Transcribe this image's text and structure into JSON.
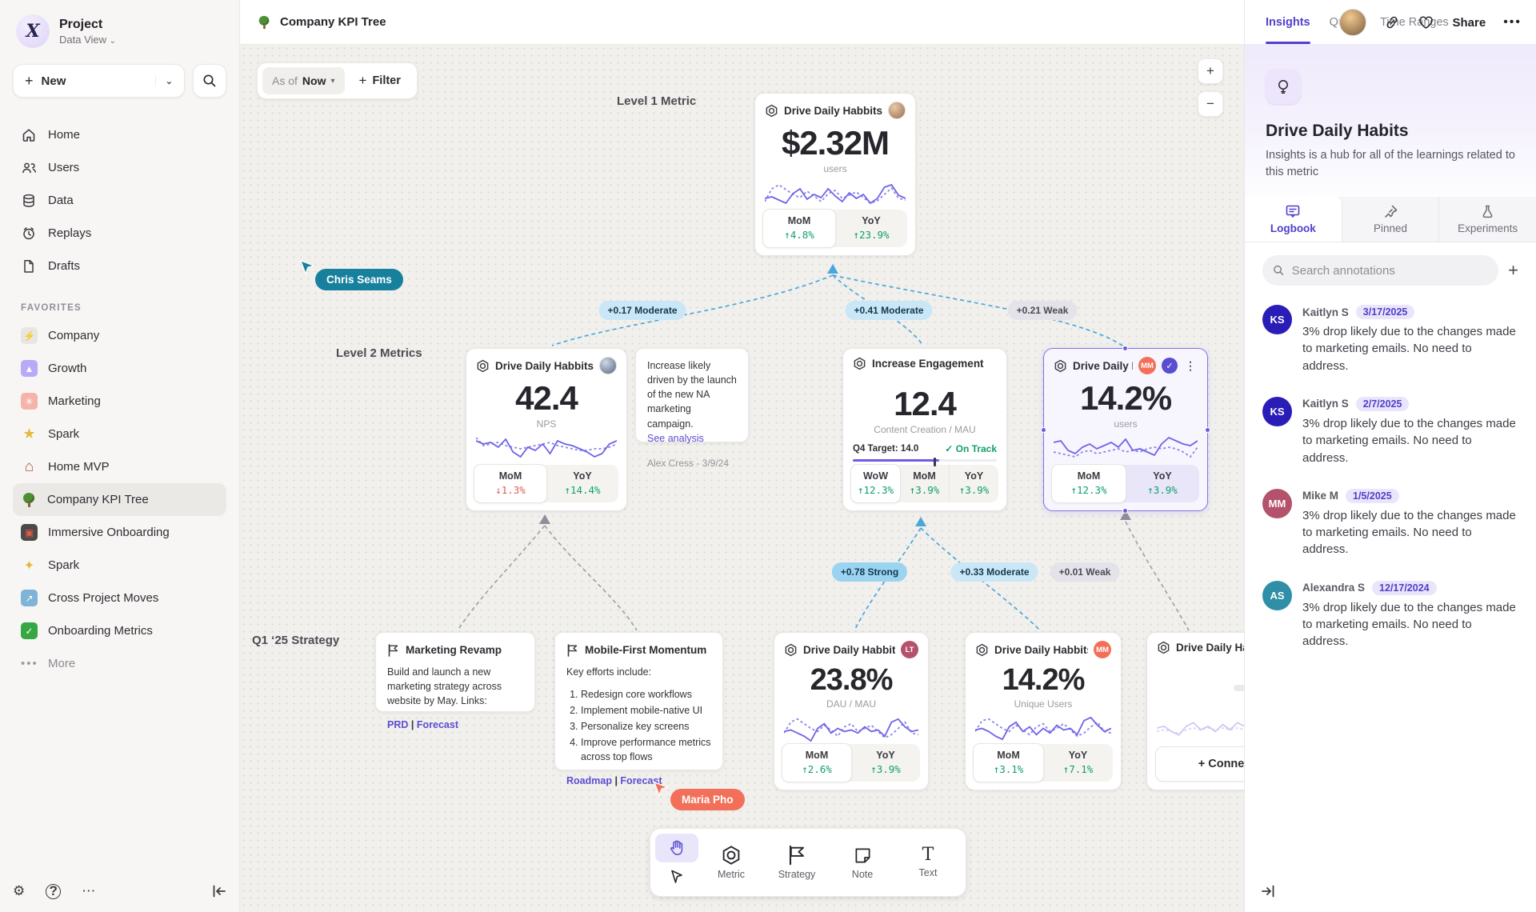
{
  "sidebar": {
    "project_name": "Project",
    "project_view": "Data View",
    "new_label": "New",
    "nav": [
      {
        "label": "Home"
      },
      {
        "label": "Users"
      },
      {
        "label": "Data"
      },
      {
        "label": "Replays"
      },
      {
        "label": "Drafts"
      }
    ],
    "favorites_label": "FAVORITES",
    "favorites": [
      {
        "label": "Company"
      },
      {
        "label": "Growth"
      },
      {
        "label": "Marketing"
      },
      {
        "label": "Spark"
      },
      {
        "label": "Home MVP"
      },
      {
        "label": "Company KPI Tree"
      },
      {
        "label": "Immersive Onboarding"
      },
      {
        "label": "Spark"
      },
      {
        "label": "Cross Project Moves"
      },
      {
        "label": "Onboarding Metrics"
      }
    ],
    "more_label": "More"
  },
  "header": {
    "title": "Company KPI Tree",
    "share_label": "Share"
  },
  "canvas": {
    "asof_prefix": "As of",
    "asof_value": "Now",
    "filter_label": "Filter",
    "zoom_in": "+",
    "zoom_out": "−",
    "labels": {
      "level1": "Level 1 Metric",
      "level2": "Level 2 Metrics",
      "q1": "Q1 ‘25 Strategy"
    },
    "cursors": [
      {
        "name": "Chris Seams",
        "color": "#17809d"
      },
      {
        "name": "Maria Pho",
        "color": "#f2705a"
      }
    ],
    "edges": [
      {
        "label": "+0.17 Moderate",
        "strength": "moderate"
      },
      {
        "label": "+0.41 Moderate",
        "strength": "moderate"
      },
      {
        "label": "+0.21 Weak",
        "strength": "weak"
      },
      {
        "label": "+0.78 Strong",
        "strength": "strong"
      },
      {
        "label": "+0.33 Moderate",
        "strength": "moderate"
      },
      {
        "label": "+0.01 Weak",
        "strength": "weak"
      }
    ],
    "cards": {
      "l1": {
        "title": "Drive Daily Habbits",
        "value": "$2.32M",
        "unit": "users",
        "deltas": [
          {
            "label": "MoM",
            "value": "↑4.8%",
            "trend": "up"
          },
          {
            "label": "YoY",
            "value": "↑23.9%",
            "trend": "up"
          }
        ],
        "spark": {
          "solid": [
            26,
            24,
            28,
            32,
            20,
            14,
            27,
            21,
            25,
            14,
            23,
            30,
            19,
            26,
            21,
            32,
            26,
            12,
            9,
            22,
            26
          ],
          "dotted": [
            30,
            14,
            9,
            15,
            21,
            25,
            17,
            23,
            30,
            20,
            16,
            26,
            22,
            18,
            25,
            32,
            29,
            21,
            13,
            26,
            28
          ]
        }
      },
      "nps": {
        "title": "Drive Daily Habbits",
        "value": "42.4",
        "unit": "NPS",
        "deltas": [
          {
            "label": "MoM",
            "value": "↓1.3%",
            "trend": "down"
          },
          {
            "label": "YoY",
            "value": "↑14.4%",
            "trend": "up"
          }
        ],
        "spark": {
          "solid": [
            10,
            14,
            12,
            18,
            8,
            24,
            30,
            18,
            22,
            14,
            26,
            10,
            14,
            16,
            20,
            24,
            30,
            26,
            14,
            10
          ],
          "dotted": [
            6,
            16,
            14,
            12,
            16,
            18,
            20,
            18,
            16,
            14,
            12,
            16,
            18,
            20,
            22,
            22,
            20,
            20,
            18,
            14
          ]
        }
      },
      "engagement": {
        "title": "Increase Engagement",
        "value": "12.4",
        "unit": "Content Creation / MAU",
        "target_label": "Q4 Target: 14.0",
        "status_label": "On Track",
        "progress": "60%",
        "deltas": [
          {
            "label": "WoW",
            "value": "↑12.3%",
            "trend": "up"
          },
          {
            "label": "MoM",
            "value": "↑3.9%",
            "trend": "up"
          },
          {
            "label": "YoY",
            "value": "↑3.9%",
            "trend": "up"
          }
        ]
      },
      "selected": {
        "title": "Drive Daily Habb..",
        "badge": "MM",
        "value": "14.2%",
        "unit": "users",
        "deltas": [
          {
            "label": "MoM",
            "value": "↑12.3%",
            "trend": "up"
          },
          {
            "label": "YoY",
            "value": "↑3.9%",
            "trend": "up"
          }
        ],
        "spark": {
          "solid": [
            12,
            10,
            22,
            26,
            18,
            14,
            20,
            16,
            12,
            18,
            8,
            22,
            20,
            24,
            28,
            14,
            6,
            10,
            14,
            16,
            10
          ],
          "dotted": [
            24,
            26,
            28,
            30,
            24,
            22,
            26,
            24,
            22,
            20,
            24,
            22,
            24,
            20,
            18,
            20,
            18,
            20,
            24,
            30,
            18
          ]
        }
      },
      "dau": {
        "title": "Drive Daily Habbits",
        "badge": "LT",
        "value": "23.8%",
        "unit": "DAU / MAU",
        "deltas": [
          {
            "label": "MoM",
            "value": "↑2.6%",
            "trend": "up"
          },
          {
            "label": "YoY",
            "value": "↑3.9%",
            "trend": "up"
          }
        ],
        "spark": {
          "solid": [
            24,
            22,
            26,
            30,
            36,
            20,
            14,
            26,
            20,
            24,
            22,
            26,
            18,
            24,
            22,
            30,
            12,
            8,
            18,
            24,
            22
          ],
          "dotted": [
            26,
            12,
            8,
            14,
            20,
            24,
            16,
            22,
            30,
            18,
            14,
            24,
            20,
            16,
            24,
            32,
            28,
            20,
            12,
            26,
            28
          ]
        }
      },
      "unique": {
        "title": "Drive Daily Habbits",
        "badge": "MM",
        "value": "14.2%",
        "unit": "Unique Users",
        "deltas": [
          {
            "label": "MoM",
            "value": "↑3.1%",
            "trend": "up"
          },
          {
            "label": "YoY",
            "value": "↑7.1%",
            "trend": "up"
          }
        ],
        "spark": {
          "solid": [
            22,
            20,
            24,
            30,
            34,
            18,
            12,
            24,
            18,
            28,
            20,
            26,
            16,
            22,
            20,
            28,
            10,
            6,
            16,
            24,
            20
          ],
          "dotted": [
            24,
            10,
            8,
            14,
            20,
            24,
            16,
            22,
            28,
            18,
            14,
            24,
            20,
            14,
            22,
            30,
            26,
            18,
            12,
            24,
            26
          ]
        }
      },
      "partial": {
        "title": "Drive Daily Hab...",
        "connect_label": "+ Connect",
        "spark": {
          "solid": [
            20,
            18,
            24,
            28,
            18,
            14,
            22,
            18,
            24,
            16,
            22,
            14,
            18,
            16,
            22,
            12,
            10,
            18,
            22,
            18
          ],
          "dotted": [
            24,
            22,
            24,
            26,
            22,
            20,
            22,
            20,
            22,
            20,
            22,
            20,
            22,
            20,
            20,
            18,
            20,
            22,
            24,
            22
          ]
        }
      }
    },
    "notes": {
      "link_separator": "|",
      "analysis": {
        "body": "Increase likely driven by the launch of the new NA marketing campaign.",
        "link": "See analysis",
        "byline": "Alex Cress - 3/9/24"
      },
      "marketing": {
        "title": "Marketing Revamp",
        "body": "Build and launch a new marketing strategy across website by May. Links:",
        "links": [
          {
            "label": "PRD"
          },
          {
            "label": "Forecast"
          }
        ]
      },
      "mobile": {
        "title": "Mobile-First Momentum",
        "intro": "Key efforts include:",
        "items": [
          "Redesign core workflows",
          "Implement mobile-native UI",
          "Personalize key screens",
          "Improve performance metrics across top flows"
        ],
        "links": [
          {
            "label": "Roadmap"
          },
          {
            "label": "Forecast"
          }
        ]
      }
    },
    "toolbar": {
      "tools": [
        {
          "label": "Metric"
        },
        {
          "label": "Strategy"
        },
        {
          "label": "Note"
        },
        {
          "label": "Text"
        }
      ]
    }
  },
  "panel": {
    "tabs": [
      {
        "label": "Insights"
      },
      {
        "label": "Query"
      },
      {
        "label": "Time Ranges"
      }
    ],
    "metric_title": "Drive Daily Habits",
    "metric_subtitle": "Insights is a hub for all of the learnings related to this metric",
    "subtabs": [
      {
        "label": "Logbook"
      },
      {
        "label": "Pinned"
      },
      {
        "label": "Experiments"
      }
    ],
    "search_placeholder": "Search annotations",
    "annotations": [
      {
        "initials": "KS",
        "color": "#2a1cb7",
        "name": "Kaitlyn S",
        "date": "3/17/2025",
        "body": "3% drop likely due to the changes made to marketing emails. No need to address."
      },
      {
        "initials": "KS",
        "color": "#2a1cb7",
        "name": "Kaitlyn S",
        "date": "2/7/2025",
        "body": "3% drop likely due to the changes made to marketing emails. No need to address."
      },
      {
        "initials": "MM",
        "color": "#b5526b",
        "name": "Mike M",
        "date": "1/5/2025",
        "body": "3% drop likely due to the changes made to marketing emails. No need to address."
      },
      {
        "initials": "AS",
        "color": "#2f8fa6",
        "name": "Alexandra S",
        "date": "12/17/2024",
        "body": "3% drop likely due to the changes made to marketing emails. No need to address."
      }
    ]
  }
}
